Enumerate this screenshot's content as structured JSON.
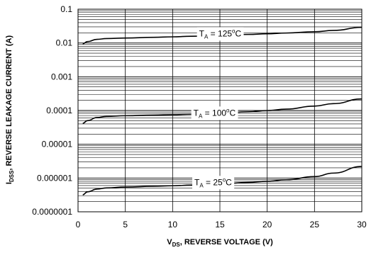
{
  "chart_data": {
    "type": "line",
    "xlabel": {
      "main": "V",
      "sub": "DS",
      "rest": ", REVERSE VOLTAGE (V)"
    },
    "ylabel": {
      "main": "I",
      "sub": "DSS",
      "rest": ", REVERSE LEAKAGE CURRENT (A)"
    },
    "xlim": [
      0,
      30
    ],
    "ylim": [
      1e-07,
      0.1
    ],
    "yscale": "log",
    "x_ticks": [
      0,
      5,
      10,
      15,
      20,
      25,
      30
    ],
    "x_tick_labels": [
      "0",
      "5",
      "10",
      "15",
      "20",
      "25",
      "30"
    ],
    "y_ticks": [
      1e-07,
      1e-06,
      1e-05,
      0.0001,
      0.001,
      0.01,
      0.1
    ],
    "y_tick_labels": [
      "0.0000001",
      "0.000001",
      "0.00001",
      "0.0001",
      "0.001",
      "0.01",
      "0.1"
    ],
    "grid": true,
    "series": [
      {
        "name": "T_A = 125°C",
        "label_main": "T",
        "label_sub": "A",
        "label_rest": " = 125",
        "label_sup": "o",
        "label_unit": "C",
        "label_x": 12.8,
        "label_y": 0.019,
        "x": [
          0.5,
          1,
          2,
          3,
          5,
          8,
          10,
          12,
          15,
          18,
          20,
          22,
          25,
          27,
          30
        ],
        "y": [
          0.0095,
          0.011,
          0.0128,
          0.0135,
          0.014,
          0.0147,
          0.0152,
          0.0158,
          0.0168,
          0.0179,
          0.0187,
          0.0197,
          0.0215,
          0.0235,
          0.029
        ]
      },
      {
        "name": "T_A = 100°C",
        "label_main": "T",
        "label_sub": "A",
        "label_rest": " = 100",
        "label_sup": "o",
        "label_unit": "C",
        "label_x": 12.2,
        "label_y": 8.5e-05,
        "x": [
          0.5,
          1,
          2,
          3,
          5,
          8,
          10,
          12,
          15,
          18,
          20,
          22,
          25,
          27,
          30
        ],
        "y": [
          4.2e-05,
          5e-05,
          6.2e-05,
          6.7e-05,
          7e-05,
          7.3e-05,
          7.5e-05,
          7.8e-05,
          8.3e-05,
          9.1e-05,
          0.0001,
          0.00011,
          0.000135,
          0.00016,
          0.00022
        ]
      },
      {
        "name": "T_A = 25°C",
        "label_main": "T",
        "label_sub": "A",
        "label_rest": " = 25",
        "label_sup": "o",
        "label_unit": "C",
        "label_x": 12.3,
        "label_y": 7.5e-07,
        "x": [
          0.5,
          1,
          2,
          3,
          5,
          8,
          10,
          12,
          15,
          18,
          20,
          22,
          25,
          27,
          30
        ],
        "y": [
          3.2e-07,
          3.9e-07,
          4.7e-07,
          5.1e-07,
          5.4e-07,
          5.7e-07,
          5.9e-07,
          6.2e-07,
          6.7e-07,
          7.4e-07,
          8e-07,
          8.9e-07,
          1.1e-06,
          1.4e-06,
          2.2e-06
        ]
      }
    ]
  }
}
